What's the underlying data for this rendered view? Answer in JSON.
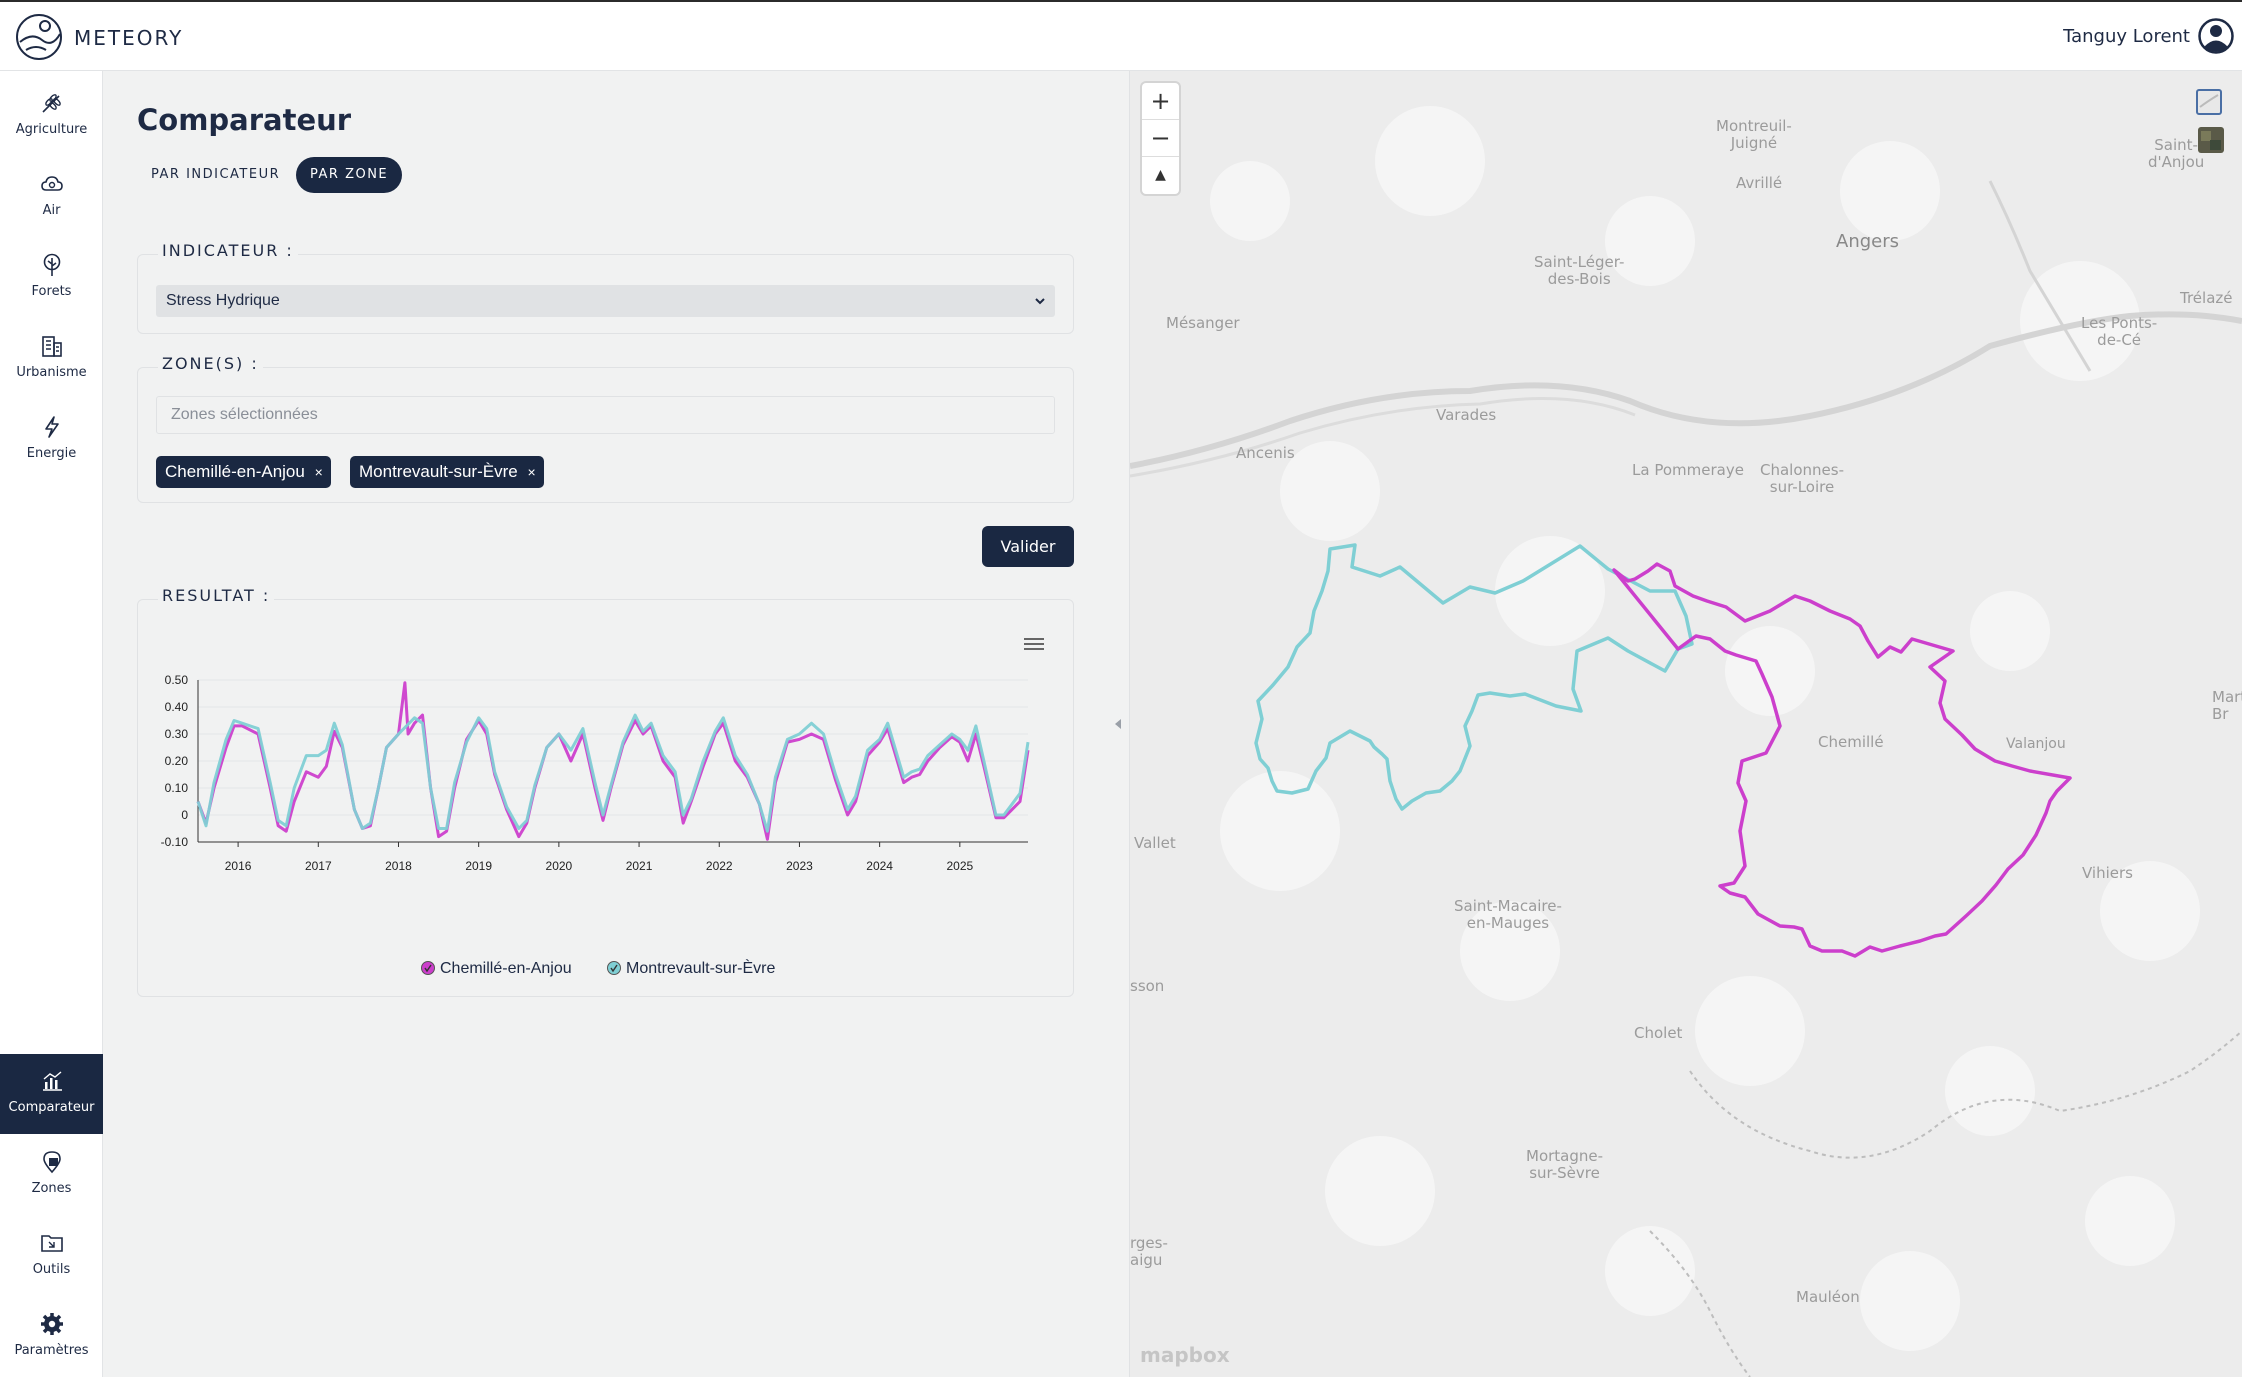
{
  "app": {
    "brand": "METEORY",
    "user_name": "Tanguy Lorent"
  },
  "sidebar": {
    "top_items": [
      {
        "label": "Agriculture",
        "icon": "wheat-icon"
      },
      {
        "label": "Air",
        "icon": "cloud-icon"
      },
      {
        "label": "Forets",
        "icon": "tree-icon"
      },
      {
        "label": "Urbanisme",
        "icon": "building-icon"
      },
      {
        "label": "Energie",
        "icon": "lightning-icon"
      }
    ],
    "bottom_items": [
      {
        "label": "Comparateur",
        "icon": "chart-icon",
        "active": true
      },
      {
        "label": "Zones",
        "icon": "location-icon"
      },
      {
        "label": "Outils",
        "icon": "folder-icon"
      },
      {
        "label": "Paramètres",
        "icon": "gear-icon"
      }
    ]
  },
  "main": {
    "title": "Comparateur",
    "tabs": [
      {
        "label": "PAR INDICATEUR",
        "active": false
      },
      {
        "label": "PAR ZONE",
        "active": true
      }
    ],
    "indicator_legend": "INDICATEUR :",
    "indicator_value": "Stress Hydrique",
    "zones_legend": "ZONE(S) :",
    "zones_placeholder": "Zones sélectionnées",
    "chips": [
      "Chemillé-en-Anjou",
      "Montrevault-sur-Èvre"
    ],
    "chip_remove": "×",
    "submit_label": "Valider",
    "result_legend": "RESULTAT :"
  },
  "chart_data": {
    "type": "line",
    "title": "",
    "xlabel": "",
    "ylabel": "",
    "ylim": [
      -0.1,
      0.5
    ],
    "yticks": [
      -0.1,
      0,
      0.1,
      0.2,
      0.3,
      0.4,
      0.5
    ],
    "ytick_labels": [
      "-0.10",
      "0",
      "0.10",
      "0.20",
      "0.30",
      "0.40",
      "0.50"
    ],
    "xlim": [
      2015.5,
      2025.85
    ],
    "xticks": [
      "2016",
      "2017",
      "2018",
      "2019",
      "2020",
      "2021",
      "2022",
      "2023",
      "2024",
      "2025"
    ],
    "grid": true,
    "legend": "bottom",
    "series": [
      {
        "name": "Chemillé-en-Anjou",
        "color": "#cc3fcc",
        "x": [
          2015.5,
          2015.6,
          2015.7,
          2015.85,
          2015.95,
          2016.05,
          2016.25,
          2016.4,
          2016.5,
          2016.6,
          2016.7,
          2016.85,
          2017.0,
          2017.1,
          2017.2,
          2017.3,
          2017.45,
          2017.55,
          2017.65,
          2017.75,
          2017.85,
          2018.0,
          2018.08,
          2018.12,
          2018.2,
          2018.3,
          2018.4,
          2018.5,
          2018.6,
          2018.7,
          2018.85,
          2019.0,
          2019.1,
          2019.2,
          2019.35,
          2019.5,
          2019.6,
          2019.7,
          2019.85,
          2020.0,
          2020.15,
          2020.3,
          2020.45,
          2020.55,
          2020.65,
          2020.8,
          2020.95,
          2021.05,
          2021.15,
          2021.3,
          2021.45,
          2021.55,
          2021.65,
          2021.8,
          2021.95,
          2022.05,
          2022.2,
          2022.35,
          2022.5,
          2022.6,
          2022.7,
          2022.85,
          2023.0,
          2023.15,
          2023.3,
          2023.45,
          2023.6,
          2023.7,
          2023.85,
          2024.0,
          2024.1,
          2024.2,
          2024.3,
          2024.4,
          2024.5,
          2024.6,
          2024.75,
          2024.9,
          2025.0,
          2025.1,
          2025.2,
          2025.3,
          2025.45,
          2025.55,
          2025.65,
          2025.75,
          2025.85
        ],
        "y": [
          0.05,
          -0.03,
          0.1,
          0.25,
          0.33,
          0.33,
          0.3,
          0.1,
          -0.04,
          -0.06,
          0.05,
          0.16,
          0.14,
          0.18,
          0.31,
          0.25,
          0.02,
          -0.05,
          -0.04,
          0.1,
          0.25,
          0.3,
          0.49,
          0.3,
          0.34,
          0.37,
          0.1,
          -0.08,
          -0.06,
          0.1,
          0.28,
          0.35,
          0.3,
          0.15,
          0.02,
          -0.08,
          -0.03,
          0.1,
          0.25,
          0.3,
          0.2,
          0.3,
          0.1,
          -0.02,
          0.1,
          0.26,
          0.35,
          0.3,
          0.33,
          0.2,
          0.14,
          -0.03,
          0.05,
          0.18,
          0.3,
          0.34,
          0.2,
          0.14,
          0.04,
          -0.09,
          0.12,
          0.27,
          0.28,
          0.3,
          0.28,
          0.13,
          0.0,
          0.05,
          0.22,
          0.27,
          0.32,
          0.22,
          0.12,
          0.14,
          0.15,
          0.2,
          0.25,
          0.29,
          0.27,
          0.2,
          0.3,
          0.18,
          -0.01,
          -0.01,
          0.02,
          0.05,
          0.24
        ]
      },
      {
        "name": "Montrevault-sur-Èvre",
        "color": "#7fcfd4",
        "x": [
          2015.5,
          2015.6,
          2015.7,
          2015.85,
          2015.95,
          2016.05,
          2016.25,
          2016.4,
          2016.5,
          2016.6,
          2016.7,
          2016.85,
          2017.0,
          2017.1,
          2017.2,
          2017.3,
          2017.45,
          2017.55,
          2017.65,
          2017.75,
          2017.85,
          2018.0,
          2018.1,
          2018.2,
          2018.3,
          2018.4,
          2018.5,
          2018.6,
          2018.7,
          2018.85,
          2019.0,
          2019.1,
          2019.2,
          2019.35,
          2019.5,
          2019.6,
          2019.7,
          2019.85,
          2020.0,
          2020.15,
          2020.3,
          2020.45,
          2020.55,
          2020.65,
          2020.8,
          2020.95,
          2021.05,
          2021.15,
          2021.3,
          2021.45,
          2021.55,
          2021.65,
          2021.8,
          2021.95,
          2022.05,
          2022.2,
          2022.35,
          2022.5,
          2022.6,
          2022.7,
          2022.85,
          2023.0,
          2023.15,
          2023.3,
          2023.45,
          2023.6,
          2023.7,
          2023.85,
          2024.0,
          2024.1,
          2024.2,
          2024.3,
          2024.4,
          2024.5,
          2024.6,
          2024.75,
          2024.9,
          2025.0,
          2025.1,
          2025.2,
          2025.3,
          2025.45,
          2025.55,
          2025.65,
          2025.75,
          2025.85
        ],
        "y": [
          0.05,
          -0.04,
          0.12,
          0.28,
          0.35,
          0.34,
          0.32,
          0.12,
          -0.02,
          -0.04,
          0.1,
          0.22,
          0.22,
          0.24,
          0.34,
          0.26,
          0.02,
          -0.05,
          -0.03,
          0.1,
          0.25,
          0.3,
          0.33,
          0.36,
          0.34,
          0.1,
          -0.05,
          -0.05,
          0.12,
          0.27,
          0.36,
          0.32,
          0.16,
          0.03,
          -0.05,
          -0.02,
          0.11,
          0.25,
          0.3,
          0.24,
          0.32,
          0.12,
          0.0,
          0.11,
          0.27,
          0.37,
          0.31,
          0.34,
          0.22,
          0.16,
          0.0,
          0.06,
          0.2,
          0.31,
          0.36,
          0.22,
          0.15,
          0.04,
          -0.06,
          0.14,
          0.28,
          0.3,
          0.34,
          0.3,
          0.15,
          0.02,
          0.07,
          0.24,
          0.28,
          0.34,
          0.24,
          0.14,
          0.16,
          0.17,
          0.22,
          0.26,
          0.3,
          0.28,
          0.24,
          0.33,
          0.2,
          0.0,
          0.0,
          0.04,
          0.08,
          0.27
        ]
      }
    ]
  },
  "map": {
    "zoom_in": "+",
    "zoom_out": "−",
    "compass": "▲",
    "attribution": "mapbox",
    "zone_colors": {
      "chemille": "#cc3fcc",
      "montrevault": "#7fcfd4"
    },
    "places": [
      {
        "name": "Montreuil-\nJuigné"
      },
      {
        "name": "Saint-\nd'Anjou"
      },
      {
        "name": "Avrillé"
      },
      {
        "name": "Angers"
      },
      {
        "name": "Saint-Léger-\ndes-Bois"
      },
      {
        "name": "Trélazé"
      },
      {
        "name": "Mésanger"
      },
      {
        "name": "Les Ponts-\nde-Cé"
      },
      {
        "name": "Varades"
      },
      {
        "name": "Ancenis"
      },
      {
        "name": "La Pommeraye"
      },
      {
        "name": "Chalonnes-\nsur-Loire"
      },
      {
        "name": "Chemillé"
      },
      {
        "name": "Valanjou"
      },
      {
        "name": "Vallet"
      },
      {
        "name": "Saint-Macaire-\nen-Mauges"
      },
      {
        "name": "Vihiers"
      },
      {
        "name": "Cholet"
      },
      {
        "name": "Mortagne-\nsur-Sèvre"
      },
      {
        "name": "Mauléon"
      },
      {
        "name": "sson"
      },
      {
        "name": "rges-\naigu"
      },
      {
        "name": "Mart\nBr"
      }
    ]
  }
}
